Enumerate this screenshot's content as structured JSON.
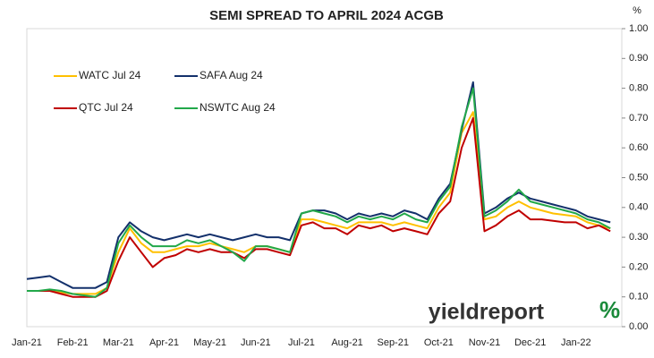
{
  "chart_data": {
    "type": "line",
    "title": "SEMI SPREAD TO APRIL 2024 ACGB",
    "y_label": "%",
    "categories": [
      "Jan-21",
      null,
      null,
      null,
      "Feb-21",
      null,
      null,
      null,
      "Mar-21",
      null,
      null,
      null,
      "Apr-21",
      null,
      null,
      null,
      "May-21",
      null,
      null,
      null,
      "Jun-21",
      null,
      null,
      null,
      "Jul-21",
      null,
      null,
      null,
      "Aug-21",
      null,
      null,
      null,
      "Sep-21",
      null,
      null,
      null,
      "Oct-21",
      null,
      null,
      null,
      "Nov-21",
      null,
      null,
      null,
      "Dec-21",
      null,
      null,
      null,
      "Jan-22",
      null,
      null,
      null
    ],
    "series": [
      {
        "name": "WATC Jul 24",
        "color": "#ffc000",
        "values": [
          0.12,
          0.12,
          0.12,
          0.115,
          0.11,
          0.11,
          0.11,
          0.13,
          0.25,
          0.33,
          0.28,
          0.25,
          0.25,
          0.26,
          0.27,
          0.27,
          0.28,
          0.27,
          0.26,
          0.25,
          0.27,
          0.27,
          0.26,
          0.25,
          0.36,
          0.36,
          0.35,
          0.34,
          0.33,
          0.35,
          0.35,
          0.35,
          0.34,
          0.35,
          0.34,
          0.33,
          0.4,
          0.45,
          0.65,
          0.72,
          0.36,
          0.37,
          0.4,
          0.42,
          0.4,
          0.39,
          0.38,
          0.375,
          0.37,
          0.35,
          0.34,
          0.33
        ]
      },
      {
        "name": "SAFA Aug 24",
        "color": "#13306b",
        "values": [
          0.16,
          0.165,
          0.17,
          0.15,
          0.13,
          0.13,
          0.13,
          0.15,
          0.3,
          0.35,
          0.32,
          0.3,
          0.29,
          0.3,
          0.31,
          0.3,
          0.31,
          0.3,
          0.29,
          0.3,
          0.31,
          0.3,
          0.3,
          0.29,
          0.38,
          0.39,
          0.39,
          0.38,
          0.36,
          0.38,
          0.37,
          0.38,
          0.37,
          0.39,
          0.38,
          0.36,
          0.43,
          0.48,
          0.66,
          0.82,
          0.38,
          0.4,
          0.43,
          0.45,
          0.43,
          0.42,
          0.41,
          0.4,
          0.39,
          0.37,
          0.36,
          0.35
        ]
      },
      {
        "name": "QTC Jul 24",
        "color": "#c00000",
        "values": [
          0.12,
          0.12,
          0.12,
          0.11,
          0.1,
          0.1,
          0.1,
          0.12,
          0.22,
          0.3,
          0.25,
          0.2,
          0.23,
          0.24,
          0.26,
          0.25,
          0.26,
          0.25,
          0.25,
          0.23,
          0.26,
          0.26,
          0.25,
          0.24,
          0.34,
          0.35,
          0.33,
          0.33,
          0.31,
          0.34,
          0.33,
          0.34,
          0.32,
          0.33,
          0.32,
          0.31,
          0.38,
          0.42,
          0.6,
          0.7,
          0.32,
          0.34,
          0.37,
          0.39,
          0.36,
          0.36,
          0.355,
          0.35,
          0.35,
          0.33,
          0.34,
          0.32
        ]
      },
      {
        "name": "NSWTC Aug 24",
        "color": "#22a84a",
        "values": [
          0.12,
          0.12,
          0.125,
          0.12,
          0.11,
          0.105,
          0.1,
          0.13,
          0.28,
          0.34,
          0.3,
          0.27,
          0.27,
          0.27,
          0.29,
          0.28,
          0.29,
          0.27,
          0.25,
          0.22,
          0.27,
          0.27,
          0.26,
          0.25,
          0.38,
          0.39,
          0.38,
          0.37,
          0.35,
          0.37,
          0.36,
          0.37,
          0.36,
          0.38,
          0.36,
          0.35,
          0.42,
          0.47,
          0.67,
          0.8,
          0.37,
          0.39,
          0.42,
          0.46,
          0.42,
          0.41,
          0.4,
          0.39,
          0.38,
          0.36,
          0.35,
          0.33
        ]
      }
    ],
    "ylim": [
      0,
      1
    ],
    "yticks": [
      {
        "value": 0,
        "label": "0.00"
      },
      {
        "value": 0.1,
        "label": "0.10"
      },
      {
        "value": 0.2,
        "label": "0.20"
      },
      {
        "value": 0.3,
        "label": "0.30"
      },
      {
        "value": 0.4,
        "label": "0.40"
      },
      {
        "value": 0.5,
        "label": "0.50"
      },
      {
        "value": 0.6,
        "label": "0.60"
      },
      {
        "value": 0.7,
        "label": "0.70"
      },
      {
        "value": 0.8,
        "label": "0.80"
      },
      {
        "value": 0.9,
        "label": "0.90"
      },
      {
        "value": 1,
        "label": "1.00"
      }
    ],
    "brand": "yieldreport",
    "brand_mark": "%"
  }
}
